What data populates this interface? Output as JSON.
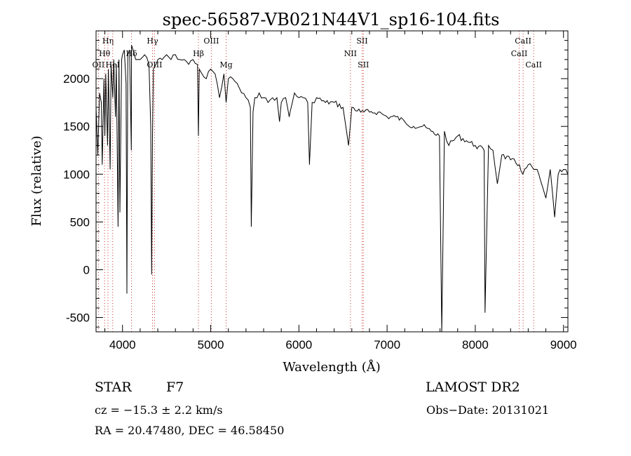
{
  "chart_data": {
    "type": "line",
    "title": "spec-56587-VB021N44V1_sp16-104.fits",
    "xlabel": "Wavelength (Å)",
    "ylabel": "Flux (relative)",
    "xlim": [
      3700,
      9050
    ],
    "ylim": [
      -650,
      2500
    ],
    "xticks": [
      4000,
      5000,
      6000,
      7000,
      8000,
      9000
    ],
    "yticks": [
      -500,
      0,
      500,
      1000,
      1500,
      2000
    ],
    "xtick_labels": [
      "4000",
      "5000",
      "6000",
      "7000",
      "8000",
      "9000"
    ],
    "ytick_labels": [
      "-500",
      "0",
      "500",
      "1000",
      "1500",
      "2000"
    ],
    "grid": false,
    "series": [
      {
        "name": "",
        "x": [
          3700,
          3720,
          3740,
          3760,
          3770,
          3790,
          3800,
          3810,
          3830,
          3840,
          3860,
          3870,
          3890,
          3900,
          3920,
          3930,
          3950,
          3960,
          3970,
          3990,
          4000,
          4020,
          4040,
          4050,
          4060,
          4080,
          4100,
          4102,
          4120,
          4150,
          4200,
          4250,
          4300,
          4320,
          4330,
          4340,
          4350,
          4380,
          4400,
          4450,
          4500,
          4550,
          4600,
          4650,
          4700,
          4750,
          4800,
          4850,
          4861,
          4870,
          4900,
          4950,
          5000,
          5050,
          5100,
          5150,
          5175,
          5200,
          5250,
          5300,
          5350,
          5400,
          5450,
          5460,
          5480,
          5500,
          5550,
          5600,
          5650,
          5700,
          5750,
          5780,
          5800,
          5850,
          5890,
          5900,
          5950,
          6000,
          6050,
          6100,
          6120,
          6150,
          6200,
          6300,
          6400,
          6500,
          6563,
          6600,
          6700,
          6800,
          6900,
          7000,
          7100,
          7200,
          7300,
          7400,
          7500,
          7594,
          7620,
          7650,
          7700,
          7800,
          7900,
          8000,
          8100,
          8110,
          8150,
          8200,
          8250,
          8300,
          8400,
          8500,
          8540,
          8600,
          8662,
          8700,
          8800,
          8850,
          8900,
          8940,
          9000,
          9050
        ],
        "y": [
          1700,
          1200,
          1850,
          1750,
          1100,
          2000,
          1400,
          2050,
          1300,
          2100,
          1050,
          2150,
          1800,
          2200,
          1600,
          2150,
          450,
          2200,
          600,
          2200,
          2250,
          2300,
          1950,
          -250,
          2250,
          2300,
          1250,
          2350,
          2300,
          2200,
          2200,
          2250,
          2150,
          1500,
          -50,
          1400,
          2100,
          2150,
          2200,
          2200,
          2250,
          2200,
          2250,
          2200,
          2200,
          2150,
          2200,
          2150,
          1400,
          2100,
          2050,
          2000,
          2100,
          2050,
          1800,
          2050,
          1750,
          2000,
          2000,
          1950,
          1850,
          1800,
          1700,
          450,
          1650,
          1800,
          1850,
          1800,
          1750,
          1800,
          1800,
          1550,
          1750,
          1800,
          1600,
          1650,
          1850,
          1800,
          1800,
          1750,
          1100,
          1750,
          1800,
          1750,
          1750,
          1700,
          1300,
          1700,
          1650,
          1650,
          1650,
          1600,
          1600,
          1550,
          1500,
          1500,
          1450,
          1400,
          -650,
          1450,
          1300,
          1400,
          1350,
          1300,
          1250,
          -450,
          1300,
          1250,
          900,
          1200,
          1150,
          1100,
          1000,
          1100,
          1050,
          1050,
          750,
          1050,
          550,
          1000,
          1050,
          1000
        ]
      }
    ],
    "lines": [
      {
        "label": "Hη",
        "wavelength": 3835,
        "row": 1,
        "dx": 0
      },
      {
        "label": "Hθ",
        "wavelength": 3797,
        "row": 2,
        "dx": 0
      },
      {
        "label": "OII",
        "wavelength": 3727,
        "row": 3,
        "dx": 0
      },
      {
        "label": "HeI",
        "wavelength": 3889,
        "row": 3,
        "dx": 0
      },
      {
        "label": "Hδ",
        "wavelength": 4102,
        "row": 2,
        "dx": 0
      },
      {
        "label": "Hγ",
        "wavelength": 4340,
        "row": 1,
        "dx": 0
      },
      {
        "label": "OIII",
        "wavelength": 4363,
        "row": 3,
        "dx": 0
      },
      {
        "label": "OIII",
        "wavelength": 5007,
        "row": 1,
        "dx": 0
      },
      {
        "label": "Hβ",
        "wavelength": 4861,
        "row": 2,
        "dx": 0
      },
      {
        "label": "Mg",
        "wavelength": 5175,
        "row": 3,
        "dx": 0
      },
      {
        "label": "SII",
        "wavelength": 6717,
        "row": 1,
        "dx": 0
      },
      {
        "label": "NII",
        "wavelength": 6584,
        "row": 2,
        "dx": 0
      },
      {
        "label": "SII",
        "wavelength": 6731,
        "row": 3,
        "dx": 0
      },
      {
        "label": "CaII",
        "wavelength": 8542,
        "row": 1,
        "dx": 0
      },
      {
        "label": "CaII",
        "wavelength": 8498,
        "row": 2,
        "dx": 0
      },
      {
        "label": "CaII",
        "wavelength": 8662,
        "row": 3,
        "dx": 0
      }
    ],
    "marker_color": "#c83232"
  },
  "info": {
    "class": "STAR",
    "subclass": "F7",
    "survey": "LAMOST DR2",
    "cz": "cz = −15.3 ± 2.2 km/s",
    "obsdate": "Obs−Date: 20131021",
    "radec": "RA =  20.47480, DEC =  46.58450"
  }
}
